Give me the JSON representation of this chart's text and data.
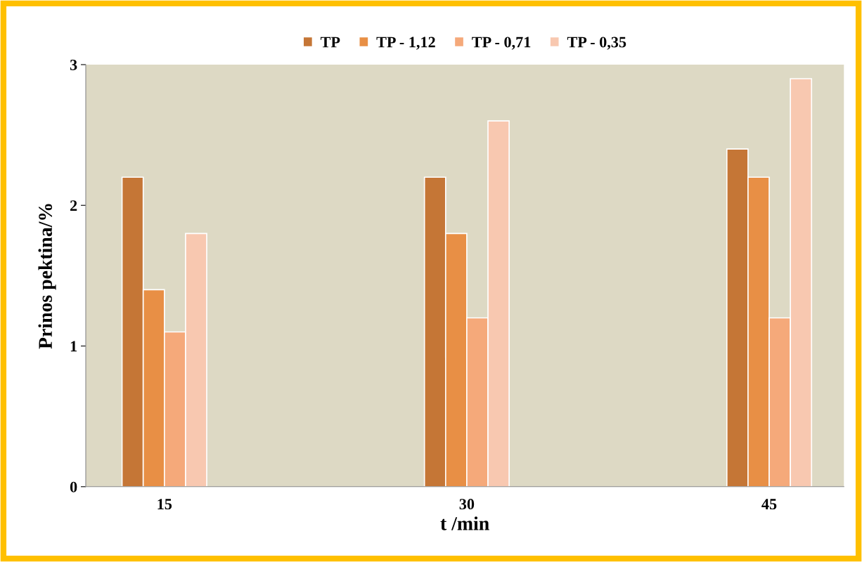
{
  "chart_data": {
    "type": "bar",
    "xlabel": "t /min",
    "ylabel": "Prinos pektina/%",
    "categories": [
      "15",
      "30",
      "45"
    ],
    "series": [
      {
        "name": "TP",
        "color": "#c57636",
        "values": [
          2.2,
          2.2,
          2.4
        ]
      },
      {
        "name": "TP - 1,12",
        "color": "#e88f45",
        "values": [
          1.4,
          1.8,
          2.2
        ]
      },
      {
        "name": "TP - 0,71",
        "color": "#f5a97a",
        "values": [
          1.1,
          1.2,
          1.2
        ]
      },
      {
        "name": "TP - 0,35",
        "color": "#f8c8b0",
        "values": [
          1.8,
          2.6,
          2.9
        ]
      }
    ],
    "ylim": [
      0,
      3
    ],
    "yticks": [
      0,
      1,
      2,
      3
    ],
    "grid": false,
    "legend": "top"
  }
}
